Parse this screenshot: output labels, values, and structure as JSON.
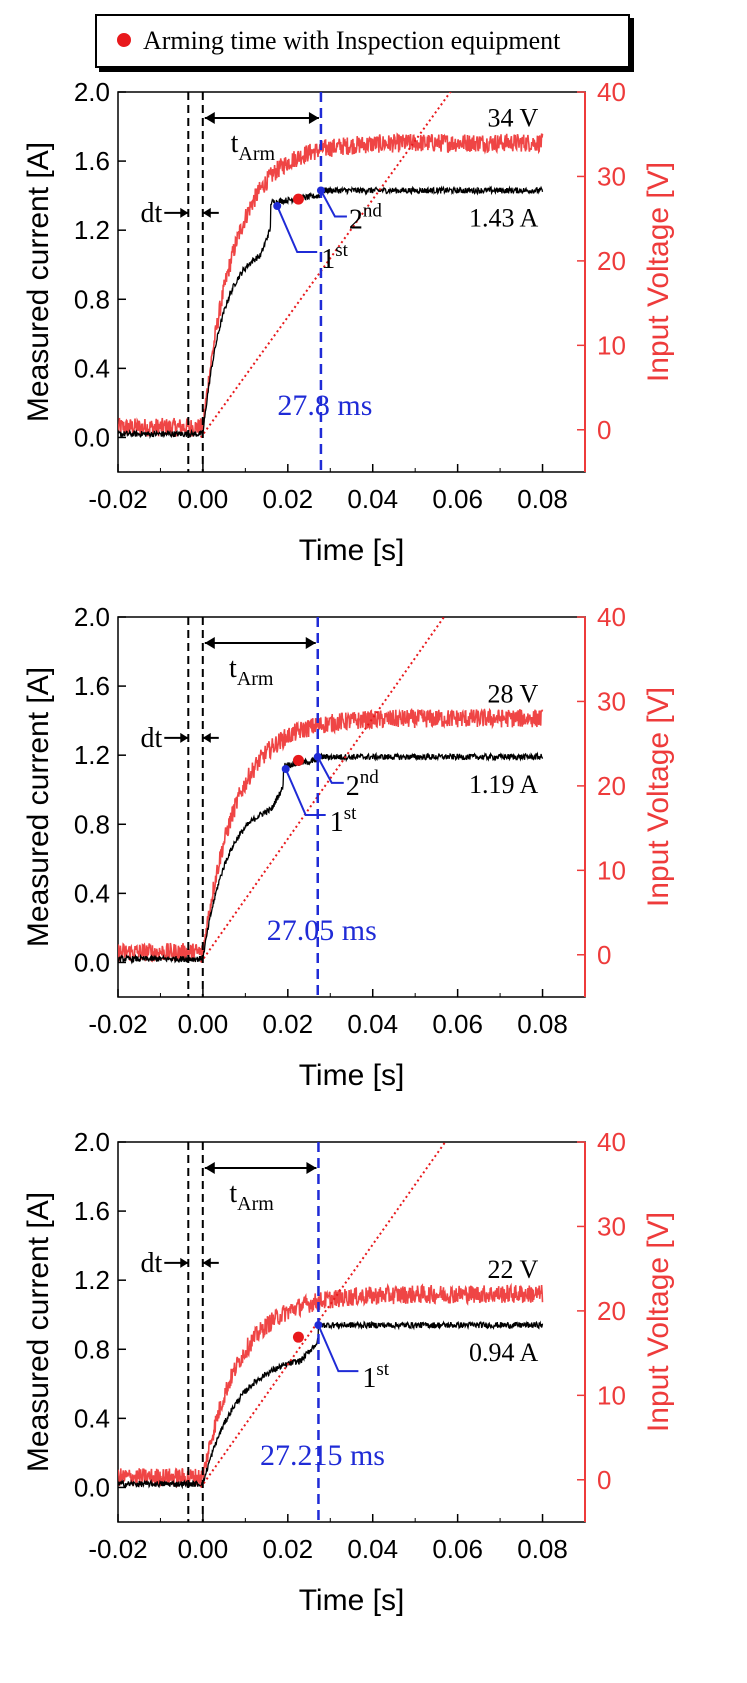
{
  "legend": {
    "label": "Arming time with Inspection equipment"
  },
  "colors": {
    "voltage": "#ee3b3b",
    "current": "#000000",
    "arming_line": "#1f2bd6",
    "annotation": "#1f2bd6",
    "dotted_fit": "#e8191c",
    "marker": "#e8191c"
  },
  "chart_data": [
    {
      "type": "line",
      "xlabel": "Time [s]",
      "ylabel": "Measured current [A]",
      "y2label": "Input Voltage [V]",
      "xlim": [
        -0.02,
        0.09
      ],
      "ylim": [
        -0.2,
        2.0
      ],
      "y2lim": [
        -5,
        40
      ],
      "xticks": [
        "-0.02",
        "0.00",
        "0.02",
        "0.04",
        "0.06",
        "0.08"
      ],
      "yticks": [
        "0.0",
        "0.4",
        "0.8",
        "1.2",
        "1.6",
        "2.0"
      ],
      "y2ticks": [
        "0",
        "10",
        "20",
        "30",
        "40"
      ],
      "voltage_final": 34,
      "current_final": 1.43,
      "current_step1": 1.36,
      "step1_time": 0.016,
      "step2_time": 0.0278,
      "voltage_start": 0.3,
      "voltage_rise_tau": 0.0075,
      "dt_lines": [
        -0.0025,
        -0.0005
      ],
      "arming_time_s": 0.0278,
      "marker": {
        "x": 0.0225,
        "y": 1.38
      },
      "labels": {
        "voltage": "34 V",
        "current": "1.43 A",
        "arming_time": "27.8 ms",
        "t_arm": "t",
        "t_arm_sub": "Arm",
        "dt": "dt",
        "first": "1",
        "first_sup": "st",
        "second": "2",
        "second_sup": "nd"
      },
      "points": {
        "first": [
          0.0175,
          1.34
        ],
        "second": [
          0.0278,
          1.43
        ]
      }
    },
    {
      "type": "line",
      "xlabel": "Time [s]",
      "ylabel": "Measured current [A]",
      "y2label": "Input Voltage [V]",
      "xlim": [
        -0.02,
        0.09
      ],
      "ylim": [
        -0.2,
        2.0
      ],
      "y2lim": [
        -5,
        40
      ],
      "xticks": [
        "-0.02",
        "0.00",
        "0.02",
        "0.04",
        "0.06",
        "0.08"
      ],
      "yticks": [
        "0.0",
        "0.4",
        "0.8",
        "1.2",
        "1.6",
        "2.0"
      ],
      "y2ticks": [
        "0",
        "10",
        "20",
        "30",
        "40"
      ],
      "voltage_final": 28,
      "current_final": 1.19,
      "current_step1": 1.14,
      "step1_time": 0.019,
      "step2_time": 0.02705,
      "voltage_start": 0.3,
      "voltage_rise_tau": 0.0078,
      "dt_lines": [
        -0.0025,
        -0.0005
      ],
      "arming_time_s": 0.02705,
      "marker": {
        "x": 0.0225,
        "y": 1.17
      },
      "labels": {
        "voltage": "28 V",
        "current": "1.19 A",
        "arming_time": "27.05 ms",
        "t_arm": "t",
        "t_arm_sub": "Arm",
        "dt": "dt",
        "first": "1",
        "first_sup": "st",
        "second": "2",
        "second_sup": "nd"
      },
      "points": {
        "first": [
          0.0195,
          1.12
        ],
        "second": [
          0.02705,
          1.19
        ]
      }
    },
    {
      "type": "line",
      "xlabel": "Time [s]",
      "ylabel": "Measured current [A]",
      "y2label": "Input Voltage [V]",
      "xlim": [
        -0.02,
        0.09
      ],
      "ylim": [
        -0.2,
        2.0
      ],
      "y2lim": [
        -5,
        40
      ],
      "xticks": [
        "-0.02",
        "0.00",
        "0.02",
        "0.04",
        "0.06",
        "0.08"
      ],
      "yticks": [
        "0.0",
        "0.4",
        "0.8",
        "1.2",
        "1.6",
        "2.0"
      ],
      "y2ticks": [
        "0",
        "10",
        "20",
        "30",
        "40"
      ],
      "voltage_final": 22,
      "current_final": 0.94,
      "current_step1": 0.94,
      "step1_time": 0.0272,
      "step2_time": 0.0272,
      "voltage_start": 0.3,
      "voltage_rise_tau": 0.0085,
      "dt_lines": [
        -0.0025,
        -0.0005
      ],
      "arming_time_s": 0.027215,
      "marker": {
        "x": 0.0225,
        "y": 0.87
      },
      "labels": {
        "voltage": "22 V",
        "current": "0.94 A",
        "arming_time": "27.215 ms",
        "t_arm": "t",
        "t_arm_sub": "Arm",
        "dt": "dt",
        "first": "1",
        "first_sup": "st",
        "second": "",
        "second_sup": ""
      },
      "points": {
        "first": [
          0.0272,
          0.94
        ],
        "second": null
      }
    }
  ]
}
